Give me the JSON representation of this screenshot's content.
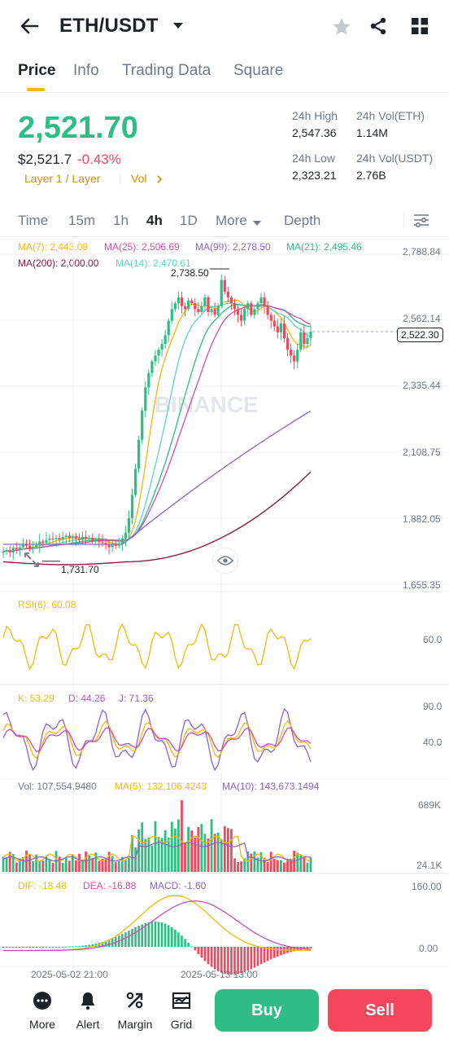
{
  "header": {
    "pair": "ETH/USDT",
    "icons": [
      "back-arrow-icon",
      "dropdown-caret-icon",
      "star-icon",
      "share-icon",
      "grid-icon"
    ]
  },
  "tabs": [
    {
      "label": "Price",
      "active": true
    },
    {
      "label": "Info"
    },
    {
      "label": "Trading Data"
    },
    {
      "label": "Square"
    }
  ],
  "price": {
    "last": "2,521.70",
    "usd": "$2,521.7",
    "change": "-0.43%",
    "tag": "Layer 1 / Layer",
    "vol_link": "Vol",
    "colors": {
      "up": "#2ebd85",
      "down": "#f6465d",
      "accent": "#c99400"
    }
  },
  "stats": {
    "high_label": "24h High",
    "high": "2,547.36",
    "low_label": "24h Low",
    "low": "2,323.21",
    "vol_eth_label": "24h Vol(ETH)",
    "vol_eth": "1.14M",
    "vol_usdt_label": "24h Vol(USDT)",
    "vol_usdt": "2.76B"
  },
  "timeframes": [
    {
      "label": "Time"
    },
    {
      "label": "15m"
    },
    {
      "label": "1h"
    },
    {
      "label": "4h",
      "active": true
    },
    {
      "label": "1D"
    },
    {
      "label": "More"
    },
    {
      "label": "Depth"
    }
  ],
  "indicators": {
    "ma7": "MA(7): 2,443.08",
    "ma25": "MA(25): 2,506.69",
    "ma99": "MA(99): 2,278.50",
    "ma21": "MA(21): 2,495.46",
    "ma200": "MA(200): 2,000.00",
    "ma14": "MA(14): 2,470.61",
    "rsi": "RSI(6): 60.08",
    "k": "K: 53.29",
    "d": "D: 44.26",
    "j": "J: 71.36",
    "vol": "Vol: 107,554.9480",
    "vol_ma5": "MA(5): 132,106.4243",
    "vol_ma10": "MA(10): 143,673.1494",
    "dif": "DIF: -18.48",
    "dea": "DEA: -16.88",
    "macd": "MACD: -1.60"
  },
  "chart_data": {
    "type": "candlestick",
    "price_axis": [
      "2,788.84",
      "2,562.14",
      "2,335.44",
      "2,108.75",
      "1,882.05",
      "1,655.35"
    ],
    "current_price_tag": "2,522.30",
    "max_label": "2,738.50",
    "min_label": "1,731.70",
    "rsi_axis": [
      "60.0"
    ],
    "kdj_axis": [
      "90.0",
      "40.0"
    ],
    "vol_axis": [
      "689K",
      "24.1K"
    ],
    "macd_axis": [
      "160.00",
      "0.00"
    ],
    "dates": [
      "2025-05-02 21:00",
      "2025-05-13 13:00"
    ],
    "watermark": "BINANCE",
    "ylim": [
      1655.35,
      2788.84
    ],
    "closes": [
      1765,
      1770,
      1762,
      1778,
      1772,
      1780,
      1790,
      1785,
      1775,
      1782,
      1788,
      1800,
      1795,
      1805,
      1810,
      1808,
      1812,
      1806,
      1815,
      1820,
      1812,
      1818,
      1810,
      1805,
      1815,
      1808,
      1812,
      1800,
      1806,
      1798,
      1795,
      1788,
      1780,
      1792,
      1785,
      1790,
      1810,
      1830,
      1880,
      1960,
      2050,
      2150,
      2250,
      2330,
      2380,
      2420,
      2440,
      2460,
      2480,
      2510,
      2560,
      2600,
      2620,
      2640,
      2610,
      2600,
      2630,
      2620,
      2600,
      2590,
      2610,
      2640,
      2590,
      2600,
      2580,
      2610,
      2700,
      2660,
      2640,
      2620,
      2600,
      2580,
      2560,
      2600,
      2620,
      2580,
      2600,
      2620,
      2640,
      2610,
      2580,
      2560,
      2540,
      2520,
      2550,
      2500,
      2460,
      2440,
      2420,
      2460,
      2520,
      2480,
      2500,
      2522.3
    ]
  },
  "bottom_nav": [
    {
      "label": "More",
      "icon": "more-icon"
    },
    {
      "label": "Alert",
      "icon": "bell-icon"
    },
    {
      "label": "Margin",
      "icon": "margin-icon"
    },
    {
      "label": "Grid",
      "icon": "grid-bot-icon"
    }
  ],
  "actions": {
    "buy": "Buy",
    "sell": "Sell",
    "buy_color": "#2ebd85",
    "sell_color": "#f6465d"
  }
}
